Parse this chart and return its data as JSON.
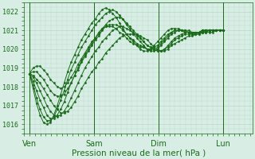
{
  "bg_color": "#d8eee5",
  "grid_color": "#b8d8cc",
  "line_color": "#1a6b1a",
  "marker_color": "#1a6b1a",
  "xlabel": "Pression niveau de la mer( hPa )",
  "xlabel_fontsize": 7.5,
  "yticks": [
    1016,
    1017,
    1018,
    1019,
    1020,
    1021,
    1022
  ],
  "xtick_labels": [
    "Ven",
    "Sam",
    "Dim",
    "Lun"
  ],
  "xtick_positions": [
    0,
    48,
    96,
    144
  ],
  "xlim": [
    -4,
    166
  ],
  "ylim": [
    1015.5,
    1022.5
  ],
  "vlines": [
    0,
    48,
    96,
    144
  ],
  "series": [
    [
      1018.7,
      1018.6,
      1018.4,
      1018.2,
      1017.9,
      1017.6,
      1017.3,
      1017.0,
      1016.8,
      1016.6,
      1016.6,
      1016.7,
      1016.9,
      1017.2,
      1017.5,
      1017.9,
      1018.2,
      1018.5,
      1018.8,
      1019.0,
      1019.3,
      1019.5,
      1019.8,
      1020.0,
      1020.2,
      1020.4,
      1020.6,
      1020.7,
      1020.8,
      1020.8,
      1020.8,
      1020.8,
      1020.7,
      1020.6,
      1020.5,
      1020.3,
      1020.1,
      1020.0,
      1019.9,
      1019.9,
      1020.0,
      1020.2,
      1020.3,
      1020.4,
      1020.5,
      1020.6,
      1020.7,
      1020.7,
      1020.8,
      1020.8,
      1020.9,
      1020.9,
      1020.9,
      1020.9,
      1021.0,
      1021.0,
      1021.0
    ],
    [
      1018.7,
      1018.5,
      1018.2,
      1017.8,
      1017.4,
      1017.0,
      1016.7,
      1016.5,
      1016.4,
      1016.5,
      1016.7,
      1017.0,
      1017.4,
      1017.8,
      1018.2,
      1018.6,
      1019.0,
      1019.3,
      1019.6,
      1019.9,
      1020.1,
      1020.4,
      1020.6,
      1020.8,
      1021.0,
      1021.1,
      1021.2,
      1021.2,
      1021.1,
      1021.0,
      1020.9,
      1020.7,
      1020.6,
      1020.4,
      1020.2,
      1020.1,
      1020.0,
      1019.9,
      1019.9,
      1020.0,
      1020.1,
      1020.3,
      1020.5,
      1020.6,
      1020.7,
      1020.8,
      1020.8,
      1020.8,
      1020.9,
      1020.9,
      1021.0,
      1021.0,
      1021.0,
      1021.0,
      1021.0,
      1021.0,
      1021.0
    ],
    [
      1018.7,
      1018.3,
      1017.8,
      1017.3,
      1016.9,
      1016.5,
      1016.3,
      1016.3,
      1016.5,
      1016.8,
      1017.2,
      1017.7,
      1018.2,
      1018.6,
      1019.0,
      1019.4,
      1019.7,
      1020.0,
      1020.3,
      1020.6,
      1020.8,
      1021.1,
      1021.3,
      1021.5,
      1021.6,
      1021.7,
      1021.7,
      1021.6,
      1021.4,
      1021.2,
      1021.0,
      1020.8,
      1020.6,
      1020.4,
      1020.2,
      1020.1,
      1020.0,
      1019.9,
      1019.9,
      1020.0,
      1020.2,
      1020.4,
      1020.6,
      1020.7,
      1020.8,
      1020.9,
      1020.9,
      1020.9,
      1020.9,
      1020.9,
      1021.0,
      1021.0,
      1021.0,
      1021.0,
      1021.0,
      1021.0,
      1021.0
    ],
    [
      1018.7,
      1018.1,
      1017.4,
      1016.8,
      1016.4,
      1016.2,
      1016.2,
      1016.4,
      1016.8,
      1017.3,
      1017.8,
      1018.4,
      1018.9,
      1019.3,
      1019.7,
      1020.1,
      1020.4,
      1020.7,
      1021.0,
      1021.3,
      1021.5,
      1021.7,
      1021.9,
      1022.0,
      1022.1,
      1022.0,
      1021.8,
      1021.6,
      1021.3,
      1021.1,
      1020.8,
      1020.6,
      1020.4,
      1020.2,
      1020.0,
      1019.9,
      1019.9,
      1020.0,
      1020.2,
      1020.4,
      1020.6,
      1020.8,
      1020.9,
      1021.0,
      1021.0,
      1020.9,
      1020.9,
      1020.8,
      1020.8,
      1020.8,
      1020.9,
      1020.9,
      1021.0,
      1021.0,
      1021.0,
      1021.0,
      1021.0
    ],
    [
      1018.7,
      1017.9,
      1017.1,
      1016.5,
      1016.1,
      1016.0,
      1016.1,
      1016.5,
      1017.0,
      1017.6,
      1018.2,
      1018.8,
      1019.3,
      1019.7,
      1020.1,
      1020.5,
      1020.8,
      1021.1,
      1021.4,
      1021.6,
      1021.9,
      1022.1,
      1022.2,
      1022.1,
      1021.9,
      1021.7,
      1021.4,
      1021.1,
      1020.8,
      1020.6,
      1020.4,
      1020.2,
      1020.0,
      1019.9,
      1019.9,
      1020.0,
      1020.2,
      1020.4,
      1020.6,
      1020.8,
      1021.0,
      1021.1,
      1021.1,
      1021.1,
      1021.0,
      1020.9,
      1020.9,
      1020.8,
      1020.8,
      1020.9,
      1020.9,
      1021.0,
      1021.0,
      1021.0,
      1021.0,
      1021.0,
      1021.0
    ],
    [
      1018.7,
      1018.8,
      1018.8,
      1018.6,
      1018.4,
      1018.1,
      1017.8,
      1017.6,
      1017.5,
      1017.5,
      1017.6,
      1017.9,
      1018.2,
      1018.6,
      1018.9,
      1019.3,
      1019.6,
      1019.9,
      1020.2,
      1020.5,
      1020.7,
      1021.0,
      1021.2,
      1021.3,
      1021.3,
      1021.3,
      1021.2,
      1021.0,
      1020.8,
      1020.6,
      1020.5,
      1020.3,
      1020.2,
      1020.1,
      1020.0,
      1020.0,
      1020.0,
      1020.1,
      1020.3,
      1020.5,
      1020.7,
      1020.9,
      1021.0,
      1021.0,
      1021.0,
      1021.0,
      1020.9,
      1020.9,
      1020.9,
      1020.9,
      1021.0,
      1021.0,
      1021.0,
      1021.0,
      1021.0,
      1021.0,
      1021.0
    ],
    [
      1018.7,
      1019.0,
      1019.1,
      1019.1,
      1018.9,
      1018.7,
      1018.4,
      1018.2,
      1018.0,
      1017.9,
      1018.0,
      1018.2,
      1018.5,
      1018.8,
      1019.2,
      1019.5,
      1019.8,
      1020.1,
      1020.4,
      1020.6,
      1020.9,
      1021.1,
      1021.2,
      1021.2,
      1021.2,
      1021.1,
      1020.9,
      1020.8,
      1020.6,
      1020.4,
      1020.3,
      1020.2,
      1020.1,
      1020.1,
      1020.0,
      1020.0,
      1020.1,
      1020.2,
      1020.4,
      1020.6,
      1020.8,
      1020.9,
      1021.0,
      1021.0,
      1021.0,
      1021.0,
      1021.0,
      1020.9,
      1020.9,
      1020.9,
      1021.0,
      1021.0,
      1021.0,
      1021.0,
      1021.0,
      1021.0,
      1021.0
    ]
  ]
}
